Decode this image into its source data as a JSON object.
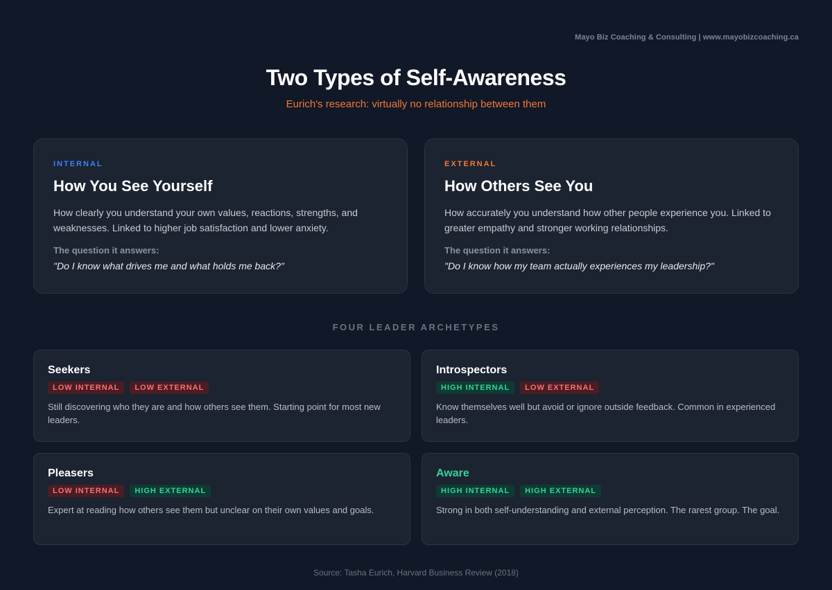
{
  "brand": "Mayo Biz Coaching & Consulting | www.mayobizcoaching.ca",
  "title": "Two Types of Self-Awareness",
  "subtitle": "Eurich's research: virtually no relationship between them",
  "types": [
    {
      "eyebrow": "INTERNAL",
      "heading": "How You See Yourself",
      "description": "How clearly you understand your own values, reactions, strengths, and weaknesses. Linked to higher job satisfaction and lower anxiety.",
      "question_label": "The question it answers:",
      "question": "\"Do I know what drives me and what holds me back?\"",
      "accent": "#3b82f6"
    },
    {
      "eyebrow": "EXTERNAL",
      "heading": "How Others See You",
      "description": "How accurately you understand how other people experience you. Linked to greater empathy and stronger working relationships.",
      "question_label": "The question it answers:",
      "question": "\"Do I know how my team actually experiences my leadership?\"",
      "accent": "#f07a35"
    }
  ],
  "archetypes_label": "FOUR LEADER ARCHETYPES",
  "archetypes": [
    {
      "name": "Seekers",
      "tags": [
        "LOW INTERNAL",
        "LOW EXTERNAL"
      ],
      "description": "Still discovering who they are and how others see them. Starting point for most new leaders."
    },
    {
      "name": "Introspectors",
      "tags": [
        "HIGH INTERNAL",
        "LOW EXTERNAL"
      ],
      "description": "Know themselves well but avoid or ignore outside feedback. Common in experienced leaders."
    },
    {
      "name": "Pleasers",
      "tags": [
        "LOW INTERNAL",
        "HIGH EXTERNAL"
      ],
      "description": "Expert at reading how others see them but unclear on their own values and goals."
    },
    {
      "name": "Aware",
      "tags": [
        "HIGH INTERNAL",
        "HIGH EXTERNAL"
      ],
      "description": "Strong in both self-understanding and external perception. The rarest group. The goal."
    }
  ],
  "colors": {
    "background": "#111827",
    "card": "#1c2331",
    "low_tag": "#f87171",
    "high_tag": "#34d399",
    "subtitle": "#f07a35"
  },
  "source": "Source: Tasha Eurich, Harvard Business Review (2018)"
}
